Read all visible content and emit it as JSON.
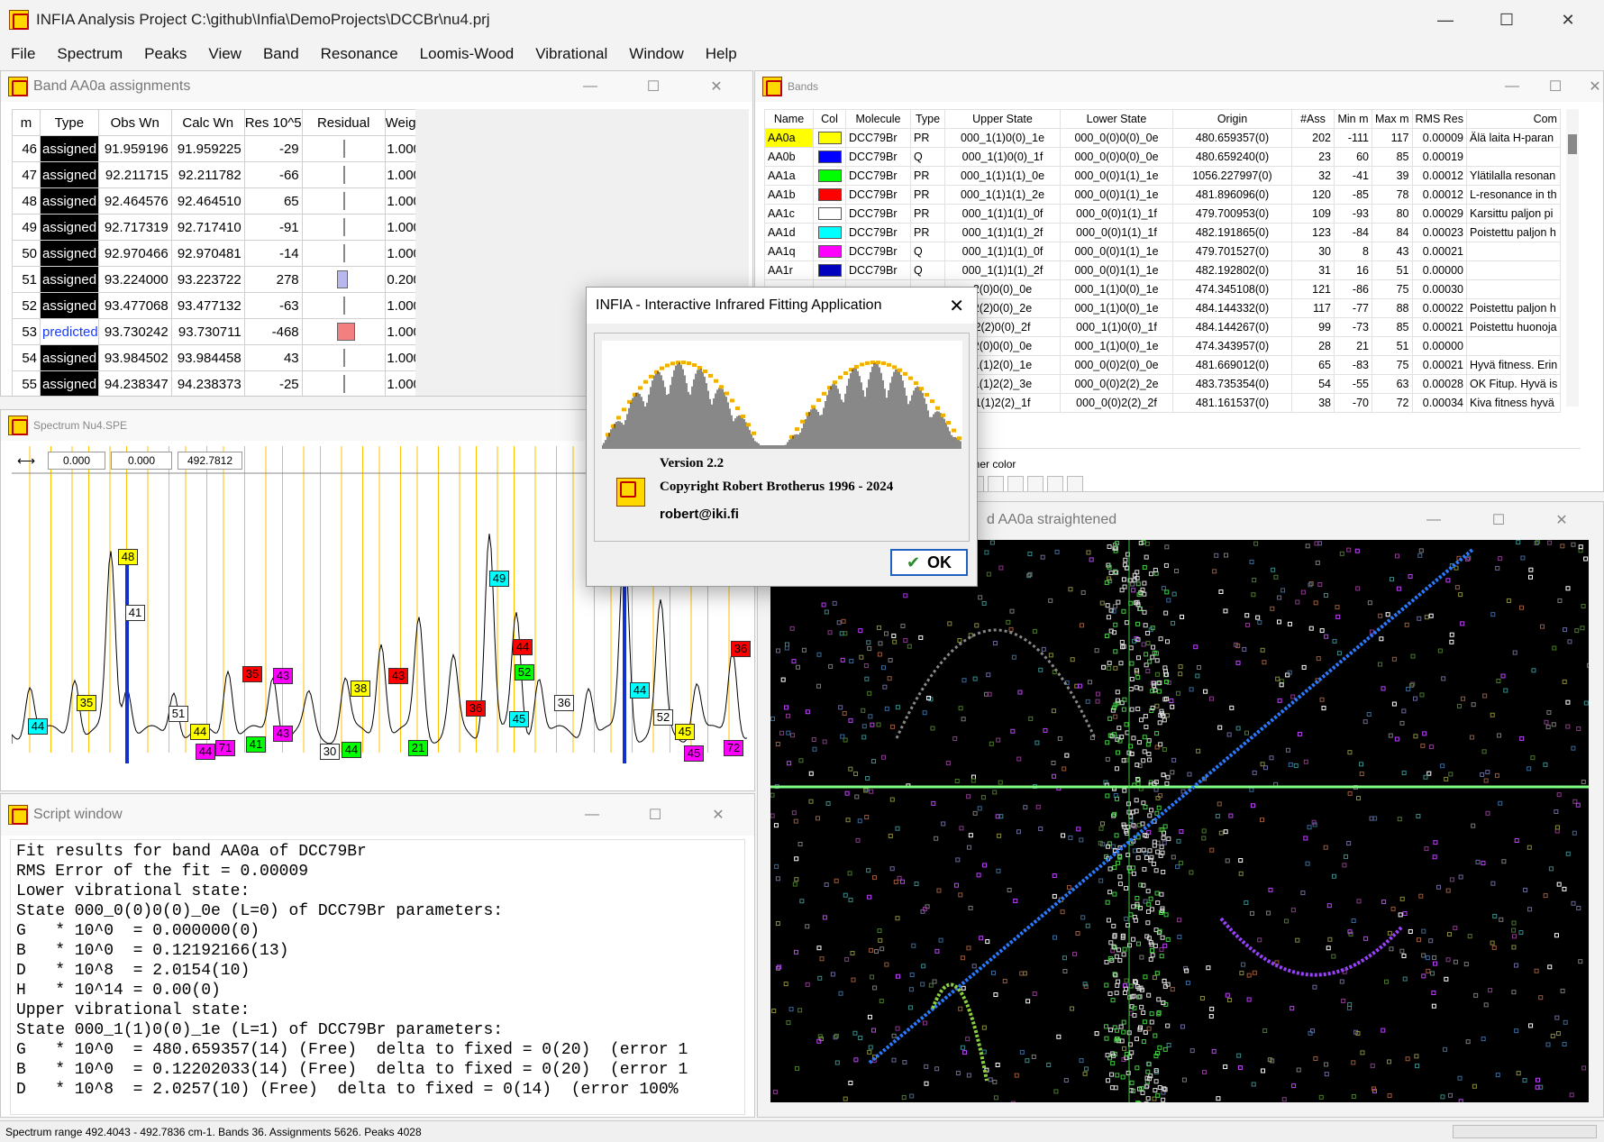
{
  "app": {
    "title": "INFIA Analysis Project C:\\github\\Infia\\DemoProjects\\DCCBr\\nu4.prj",
    "minimize": "—",
    "maximize": "☐",
    "close": "✕"
  },
  "menu": [
    "File",
    "Spectrum",
    "Peaks",
    "View",
    "Band",
    "Resonance",
    "Loomis-Wood",
    "Vibrational",
    "Window",
    "Help"
  ],
  "assignments": {
    "title": "Band AA0a assignments",
    "columns": [
      "m",
      "Type",
      "Obs Wn",
      "Calc Wn",
      "Res 10^5",
      "Residual",
      "Weigh"
    ],
    "rows": [
      {
        "m": "46",
        "type": "assigned",
        "obs": "91.959196",
        "calc": "91.959225",
        "res": "-29",
        "resid": -29,
        "weight": "1.000"
      },
      {
        "m": "47",
        "type": "assigned",
        "obs": "92.211715",
        "calc": "92.211782",
        "res": "-66",
        "resid": -66,
        "weight": "1.000"
      },
      {
        "m": "48",
        "type": "assigned",
        "obs": "92.464576",
        "calc": "92.464510",
        "res": "65",
        "resid": 65,
        "weight": "1.000"
      },
      {
        "m": "49",
        "type": "assigned",
        "obs": "92.717319",
        "calc": "92.717410",
        "res": "-91",
        "resid": -91,
        "weight": "1.000"
      },
      {
        "m": "50",
        "type": "assigned",
        "obs": "92.970466",
        "calc": "92.970481",
        "res": "-14",
        "resid": -14,
        "weight": "1.000"
      },
      {
        "m": "51",
        "type": "assigned",
        "obs": "93.224000",
        "calc": "93.223722",
        "res": "278",
        "resid": 278,
        "weight": "0.200"
      },
      {
        "m": "52",
        "type": "assigned",
        "obs": "93.477068",
        "calc": "93.477132",
        "res": "-63",
        "resid": -63,
        "weight": "1.000"
      },
      {
        "m": "53",
        "type": "predicted",
        "obs": "93.730242",
        "calc": "93.730711",
        "res": "-468",
        "resid": -468,
        "weight": "1.000"
      },
      {
        "m": "54",
        "type": "assigned",
        "obs": "93.984502",
        "calc": "93.984458",
        "res": "43",
        "resid": 43,
        "weight": "1.000"
      },
      {
        "m": "55",
        "type": "assigned",
        "obs": "94.238347",
        "calc": "94.238373",
        "res": "-25",
        "resid": -25,
        "weight": "1.000"
      }
    ]
  },
  "bands": {
    "title": "Bands",
    "columns": [
      "Name",
      "Col",
      "Molecule",
      "Type",
      "Upper State",
      "Lower State",
      "Origin",
      "#Ass",
      "Min m",
      "Max m",
      "RMS Res",
      "Com"
    ],
    "rows": [
      {
        "name": "AA0a",
        "color": "#ffff00",
        "mol": "DCC79Br",
        "type": "PR",
        "upper": "000_1(1)0(0)_1e",
        "lower": "000_0(0)0(0)_0e",
        "origin": "480.659357(0)",
        "ass": "202",
        "min": "-111",
        "max": "117",
        "rms": "0.00009",
        "com": "Älä laita H-paran"
      },
      {
        "name": "AA0b",
        "color": "#0000ff",
        "mol": "DCC79Br",
        "type": "Q",
        "upper": "000_1(1)0(0)_1f",
        "lower": "000_0(0)0(0)_0e",
        "origin": "480.659240(0)",
        "ass": "23",
        "min": "60",
        "max": "85",
        "rms": "0.00019",
        "com": ""
      },
      {
        "name": "AA1a",
        "color": "#00ff00",
        "mol": "DCC79Br",
        "type": "PR",
        "upper": "000_1(1)1(1)_0e",
        "lower": "000_0(0)1(1)_1e",
        "origin": "1056.227997(0)",
        "ass": "32",
        "min": "-41",
        "max": "39",
        "rms": "0.00012",
        "com": "Ylätilalla resonan"
      },
      {
        "name": "AA1b",
        "color": "#ff0000",
        "mol": "DCC79Br",
        "type": "PR",
        "upper": "000_1(1)1(1)_2e",
        "lower": "000_0(0)1(1)_1e",
        "origin": "481.896096(0)",
        "ass": "120",
        "min": "-85",
        "max": "78",
        "rms": "0.00012",
        "com": "L-resonance in th"
      },
      {
        "name": "AA1c",
        "color": "#ffffff",
        "mol": "DCC79Br",
        "type": "PR",
        "upper": "000_1(1)1(1)_0f",
        "lower": "000_0(0)1(1)_1f",
        "origin": "479.700953(0)",
        "ass": "109",
        "min": "-93",
        "max": "80",
        "rms": "0.00029",
        "com": "Karsittu paljon pi"
      },
      {
        "name": "AA1d",
        "color": "#00ffff",
        "mol": "DCC79Br",
        "type": "PR",
        "upper": "000_1(1)1(1)_2f",
        "lower": "000_0(0)1(1)_1f",
        "origin": "482.191865(0)",
        "ass": "123",
        "min": "-84",
        "max": "84",
        "rms": "0.00023",
        "com": "Poistettu paljon h"
      },
      {
        "name": "AA1q",
        "color": "#ff00ff",
        "mol": "DCC79Br",
        "type": "Q",
        "upper": "000_1(1)1(1)_0f",
        "lower": "000_0(0)1(1)_1e",
        "origin": "479.701527(0)",
        "ass": "30",
        "min": "8",
        "max": "43",
        "rms": "0.00021",
        "com": ""
      },
      {
        "name": "AA1r",
        "color": "#0000c0",
        "mol": "DCC79Br",
        "type": "Q",
        "upper": "000_1(1)1(1)_2f",
        "lower": "000_0(0)1(1)_1e",
        "origin": "482.192802(0)",
        "ass": "31",
        "min": "16",
        "max": "51",
        "rms": "0.00000",
        "com": ""
      },
      {
        "name": "",
        "color": "",
        "mol": "",
        "type": "",
        "upper": "2(0)0(0)_0e",
        "lower": "000_1(1)0(0)_1e",
        "origin": "474.345108(0)",
        "ass": "121",
        "min": "-86",
        "max": "75",
        "rms": "0.00030",
        "com": ""
      },
      {
        "name": "",
        "color": "",
        "mol": "",
        "type": "",
        "upper": "2(2)0(0)_2e",
        "lower": "000_1(1)0(0)_1e",
        "origin": "484.144332(0)",
        "ass": "117",
        "min": "-77",
        "max": "88",
        "rms": "0.00022",
        "com": "Poistettu paljon h"
      },
      {
        "name": "",
        "color": "",
        "mol": "",
        "type": "",
        "upper": "2(2)0(0)_2f",
        "lower": "000_1(1)0(0)_1f",
        "origin": "484.144267(0)",
        "ass": "99",
        "min": "-73",
        "max": "85",
        "rms": "0.00021",
        "com": "Poistettu huonoja"
      },
      {
        "name": "",
        "color": "",
        "mol": "",
        "type": "",
        "upper": "2(0)0(0)_0e",
        "lower": "000_1(1)0(0)_1e",
        "origin": "474.343957(0)",
        "ass": "28",
        "min": "21",
        "max": "51",
        "rms": "0.00000",
        "com": ""
      },
      {
        "name": "",
        "color": "",
        "mol": "",
        "type": "",
        "upper": "1(1)2(0)_1e",
        "lower": "000_0(0)2(0)_0e",
        "origin": "481.669012(0)",
        "ass": "65",
        "min": "-83",
        "max": "75",
        "rms": "0.00021",
        "com": "Hyvä fitness. Erin"
      },
      {
        "name": "",
        "color": "",
        "mol": "",
        "type": "",
        "upper": "1(1)2(2)_3e",
        "lower": "000_0(0)2(2)_2e",
        "origin": "483.735354(0)",
        "ass": "54",
        "min": "-55",
        "max": "63",
        "rms": "0.00028",
        "com": "OK Fitup. Hyvä is"
      },
      {
        "name": "",
        "color": "",
        "mol": "",
        "type": "",
        "upper": "1(1)2(2)_1f",
        "lower": "000_0(0)2(2)_2f",
        "origin": "481.161537(0)",
        "ass": "38",
        "min": "-70",
        "max": "72",
        "rms": "0.00034",
        "com": "Kiva fitness hyvä"
      }
    ],
    "inner_color_label": "nner color"
  },
  "spectrum": {
    "title": "Spectrum Nu4.SPE",
    "field1": "0.000",
    "field2": "0.000",
    "field3": "492.7812",
    "labels": [
      {
        "t": "48",
        "c": "#ffff00"
      },
      {
        "t": "41",
        "c": "#ffffff"
      },
      {
        "t": "49",
        "c": "#00ffff"
      },
      {
        "t": "43",
        "c": "#ff00ff"
      },
      {
        "t": "35",
        "c": "#ffff00"
      },
      {
        "t": "44",
        "c": "#00ffff"
      },
      {
        "t": "51",
        "c": "#ffffff"
      },
      {
        "t": "44",
        "c": "#ffff00"
      },
      {
        "t": "44",
        "c": "#ff00ff"
      },
      {
        "t": "71",
        "c": "#ff00ff"
      },
      {
        "t": "35",
        "c": "#ff0000"
      },
      {
        "t": "43",
        "c": "#ff00ff"
      },
      {
        "t": "41",
        "c": "#00ff00"
      },
      {
        "t": "38",
        "c": "#ffff00"
      },
      {
        "t": "30",
        "c": "#ffffff"
      },
      {
        "t": "44",
        "c": "#00ff00"
      },
      {
        "t": "43",
        "c": "#ff0000"
      },
      {
        "t": "21",
        "c": "#00ff00"
      },
      {
        "t": "36",
        "c": "#ff0000"
      },
      {
        "t": "44",
        "c": "#ff0000"
      },
      {
        "t": "52",
        "c": "#00ff00"
      },
      {
        "t": "45",
        "c": "#00ffff"
      },
      {
        "t": "36",
        "c": "#ffffff"
      },
      {
        "t": "44",
        "c": "#00ffff"
      },
      {
        "t": "52",
        "c": "#ffffff"
      },
      {
        "t": "45",
        "c": "#ffff00"
      },
      {
        "t": "45",
        "c": "#ff00ff"
      },
      {
        "t": "72",
        "c": "#ff00ff"
      },
      {
        "t": "36",
        "c": "#ff0000"
      }
    ]
  },
  "loomis": {
    "title": "d AA0a straightened"
  },
  "script": {
    "title": "Script window",
    "lines": [
      "Fit results for band AA0a of DCC79Br",
      "RMS Error of the fit = 0.00009",
      "Lower vibrational state:",
      "State 000_0(0)0(0)_0e (L=0) of DCC79Br parameters:",
      "G   * 10^0  = 0.000000(0)",
      "B   * 10^0  = 0.12192166(13)",
      "D   * 10^8  = 2.0154(10)",
      "H   * 10^14 = 0.00(0)",
      "Upper vibrational state:",
      "State 000_1(1)0(0)_1e (L=1) of DCC79Br parameters:",
      "G   * 10^0  = 480.659357(14) (Free)  delta to fixed = 0(20)  (error 1",
      "B   * 10^0  = 0.12202033(14) (Free)  delta to fixed = 0(20)  (error 1",
      "D   * 10^8  = 2.0257(10) (Free)  delta to fixed = 0(14)  (error 100%"
    ]
  },
  "dialog": {
    "title": "INFIA - Interactive Infrared Fitting Application",
    "version": "Version 2.2",
    "copyright": "Copyright Robert Brotherus 1996 - 2024",
    "email": "robert@iki.fi",
    "ok": "OK"
  },
  "status": "Spectrum range 492.4043 - 492.7836 cm-1. Bands 36. Assignments 5626. Peaks 4028"
}
